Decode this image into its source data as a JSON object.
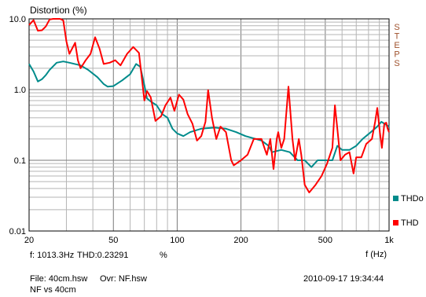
{
  "title": "Distortion (%)",
  "side_label": "STEPS",
  "readout": {
    "freq": "f: 1013.3Hz",
    "thd": "THD:0.23291",
    "unit": "%"
  },
  "footer": {
    "file": "File: 40cm.hsw",
    "ovr": "Ovr: NF.hsw",
    "compare": "NF vs 40cm",
    "timestamp": "2010-09-17 19:34:44"
  },
  "chart_data": {
    "type": "line",
    "title": "Distortion (%)",
    "xlabel": "f (Hz)",
    "ylabel": "",
    "xscale": "log",
    "yscale": "log",
    "xlim": [
      20,
      1000
    ],
    "ylim": [
      0.01,
      10
    ],
    "grid": true,
    "legend": "right",
    "x_ticks": [
      {
        "value": 20,
        "label": "20"
      },
      {
        "value": 50,
        "label": "50"
      },
      {
        "value": 100,
        "label": "100"
      },
      {
        "value": 200,
        "label": "200"
      },
      {
        "value": 500,
        "label": "500"
      },
      {
        "value": 1000,
        "label": "1k"
      }
    ],
    "y_ticks": [
      {
        "value": 10,
        "label": "10.0"
      },
      {
        "value": 1,
        "label": "1.0"
      },
      {
        "value": 0.1,
        "label": "0.1"
      },
      {
        "value": 0.01,
        "label": "0.01"
      }
    ],
    "series": [
      {
        "name": "THDo",
        "color": "#008b8b",
        "points": [
          [
            20,
            2.3
          ],
          [
            21,
            1.8
          ],
          [
            22,
            1.3
          ],
          [
            23,
            1.4
          ],
          [
            24,
            1.6
          ],
          [
            25,
            1.9
          ],
          [
            27,
            2.4
          ],
          [
            29,
            2.5
          ],
          [
            31,
            2.4
          ],
          [
            35,
            2.2
          ],
          [
            38,
            1.9
          ],
          [
            42,
            1.5
          ],
          [
            45,
            1.2
          ],
          [
            47,
            1.1
          ],
          [
            50,
            1.12
          ],
          [
            55,
            1.35
          ],
          [
            60,
            1.65
          ],
          [
            64,
            2.3
          ],
          [
            67,
            2.1
          ],
          [
            70,
            1.15
          ],
          [
            72,
            0.75
          ],
          [
            75,
            0.68
          ],
          [
            80,
            0.6
          ],
          [
            85,
            0.45
          ],
          [
            90,
            0.4
          ],
          [
            95,
            0.28
          ],
          [
            100,
            0.24
          ],
          [
            107,
            0.22
          ],
          [
            115,
            0.25
          ],
          [
            130,
            0.28
          ],
          [
            150,
            0.29
          ],
          [
            170,
            0.28
          ],
          [
            190,
            0.25
          ],
          [
            210,
            0.22
          ],
          [
            250,
            0.19
          ],
          [
            270,
            0.16
          ],
          [
            280,
            0.13
          ],
          [
            310,
            0.14
          ],
          [
            340,
            0.13
          ],
          [
            370,
            0.1
          ],
          [
            400,
            0.1
          ],
          [
            430,
            0.08
          ],
          [
            460,
            0.1
          ],
          [
            500,
            0.1
          ],
          [
            540,
            0.1
          ],
          [
            570,
            0.16
          ],
          [
            600,
            0.14
          ],
          [
            650,
            0.14
          ],
          [
            700,
            0.16
          ],
          [
            750,
            0.2
          ],
          [
            820,
            0.25
          ],
          [
            880,
            0.3
          ],
          [
            920,
            0.35
          ],
          [
            1000,
            0.3
          ]
        ]
      },
      {
        "name": "THD",
        "color": "#ff0000",
        "points": [
          [
            20,
            8.2
          ],
          [
            21,
            9.6
          ],
          [
            22,
            6.8
          ],
          [
            23,
            6.9
          ],
          [
            24,
            7.8
          ],
          [
            25,
            9.8
          ],
          [
            26,
            10
          ],
          [
            28,
            10
          ],
          [
            29,
            9.5
          ],
          [
            30,
            4.8
          ],
          [
            31,
            3.2
          ],
          [
            33,
            4.6
          ],
          [
            34,
            2.6
          ],
          [
            35,
            2.0
          ],
          [
            37,
            2.6
          ],
          [
            39,
            3.2
          ],
          [
            41,
            5.5
          ],
          [
            43,
            3.8
          ],
          [
            45,
            2.3
          ],
          [
            48,
            2.4
          ],
          [
            51,
            2.6
          ],
          [
            54,
            2.2
          ],
          [
            58,
            3.2
          ],
          [
            62,
            4.0
          ],
          [
            66,
            3.3
          ],
          [
            70,
            0.7
          ],
          [
            72,
            0.95
          ],
          [
            75,
            0.78
          ],
          [
            79,
            0.36
          ],
          [
            84,
            0.42
          ],
          [
            88,
            0.6
          ],
          [
            93,
            0.77
          ],
          [
            97,
            0.5
          ],
          [
            102,
            0.85
          ],
          [
            107,
            0.72
          ],
          [
            112,
            0.45
          ],
          [
            118,
            0.33
          ],
          [
            124,
            0.19
          ],
          [
            130,
            0.22
          ],
          [
            136,
            0.35
          ],
          [
            140,
            0.98
          ],
          [
            146,
            0.4
          ],
          [
            153,
            0.2
          ],
          [
            160,
            0.3
          ],
          [
            170,
            0.25
          ],
          [
            180,
            0.1
          ],
          [
            185,
            0.085
          ],
          [
            200,
            0.1
          ],
          [
            215,
            0.12
          ],
          [
            230,
            0.2
          ],
          [
            250,
            0.2
          ],
          [
            260,
            0.14
          ],
          [
            265,
            0.12
          ],
          [
            275,
            0.2
          ],
          [
            285,
            0.075
          ],
          [
            295,
            0.2
          ],
          [
            300,
            0.25
          ],
          [
            310,
            0.15
          ],
          [
            320,
            0.2
          ],
          [
            335,
            1.1
          ],
          [
            350,
            0.2
          ],
          [
            360,
            0.1
          ],
          [
            375,
            0.2
          ],
          [
            385,
            0.12
          ],
          [
            400,
            0.045
          ],
          [
            420,
            0.035
          ],
          [
            450,
            0.045
          ],
          [
            480,
            0.06
          ],
          [
            510,
            0.09
          ],
          [
            540,
            0.15
          ],
          [
            555,
            0.6
          ],
          [
            570,
            0.28
          ],
          [
            590,
            0.1
          ],
          [
            620,
            0.12
          ],
          [
            650,
            0.13
          ],
          [
            680,
            0.065
          ],
          [
            700,
            0.11
          ],
          [
            740,
            0.11
          ],
          [
            780,
            0.17
          ],
          [
            830,
            0.2
          ],
          [
            860,
            0.35
          ],
          [
            880,
            0.55
          ],
          [
            905,
            0.25
          ],
          [
            925,
            0.15
          ],
          [
            950,
            0.33
          ],
          [
            970,
            0.34
          ],
          [
            985,
            0.28
          ],
          [
            1000,
            0.25
          ]
        ]
      }
    ]
  }
}
